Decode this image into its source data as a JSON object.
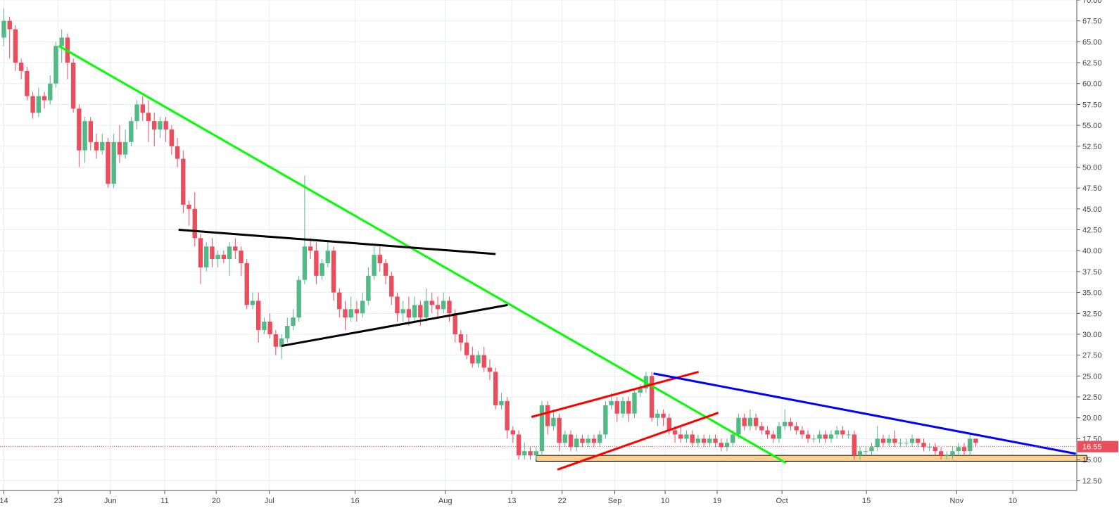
{
  "chart_data": {
    "type": "candlestick",
    "title": "",
    "ylim": [
      11.3,
      70.0
    ],
    "y_ticks": [
      12.5,
      15.0,
      17.5,
      20.0,
      22.5,
      25.0,
      27.5,
      30.0,
      32.5,
      35.0,
      37.5,
      40.0,
      42.5,
      45.0,
      47.5,
      50.0,
      52.5,
      55.0,
      57.5,
      60.0,
      62.5,
      65.0,
      67.5,
      70.0
    ],
    "y_tick_labels": [
      "12.50",
      "15.00",
      "17.50",
      "20.00",
      "22.50",
      "25.00",
      "27.50",
      "30.00",
      "32.50",
      "35.00",
      "37.50",
      "40.00",
      "42.50",
      "45.00",
      "47.50",
      "50.00",
      "52.50",
      "55.00",
      "57.50",
      "60.00",
      "62.50",
      "65.00",
      "67.50",
      "70.00"
    ],
    "x_ticks": [
      {
        "label": "14",
        "i": 0
      },
      {
        "label": "23",
        "i": 9.4
      },
      {
        "label": "Jun",
        "i": 18.4
      },
      {
        "label": "11",
        "i": 27.8
      },
      {
        "label": "20",
        "i": 36.7
      },
      {
        "label": "Jul",
        "i": 45.9
      },
      {
        "label": "16",
        "i": 60.7
      },
      {
        "label": "Aug",
        "i": 76.3
      },
      {
        "label": "13",
        "i": 87.8
      },
      {
        "label": "22",
        "i": 96.5
      },
      {
        "label": "Sep",
        "i": 105.6
      },
      {
        "label": "10",
        "i": 114.3
      },
      {
        "label": "19",
        "i": 123.3
      },
      {
        "label": "Oct",
        "i": 134.5
      },
      {
        "label": "15",
        "i": 149.1
      },
      {
        "label": "Nov",
        "i": 164.7
      },
      {
        "label": "10",
        "i": 174.4
      }
    ],
    "last_price": 16.55,
    "last_price_label": "16.55",
    "colors": {
      "up": "#53b987",
      "down": "#eb4d5c",
      "grid": "#e6eef2",
      "price_line": "#eb4d5c"
    },
    "candles": [
      [
        65.5,
        67.5,
        69.0,
        64.5
      ],
      [
        67.5,
        66.5,
        68.0,
        63.0
      ],
      [
        66.5,
        62.5,
        67.0,
        61.5
      ],
      [
        62.5,
        61.5,
        63.0,
        60.5
      ],
      [
        61.5,
        58.5,
        62.0,
        58.0
      ],
      [
        58.5,
        56.5,
        59.0,
        55.8
      ],
      [
        56.5,
        58.5,
        59.5,
        56.0
      ],
      [
        58.5,
        58.0,
        59.0,
        57.0
      ],
      [
        58.0,
        60.0,
        61.0,
        57.5
      ],
      [
        60.0,
        64.5,
        65.0,
        59.5
      ],
      [
        64.5,
        65.5,
        66.5,
        62.5
      ],
      [
        65.5,
        62.5,
        66.0,
        60.5
      ],
      [
        62.5,
        57.0,
        63.0,
        56.5
      ],
      [
        57.0,
        52.0,
        57.5,
        50.0
      ],
      [
        52.0,
        55.5,
        56.0,
        50.5
      ],
      [
        55.5,
        53.0,
        56.0,
        52.0
      ],
      [
        53.0,
        52.0,
        54.0,
        51.0
      ],
      [
        52.0,
        53.0,
        54.0,
        51.5
      ],
      [
        53.0,
        48.0,
        53.5,
        47.5
      ],
      [
        48.0,
        53.0,
        54.0,
        47.5
      ],
      [
        53.0,
        51.5,
        55.0,
        50.5
      ],
      [
        51.5,
        53.0,
        54.5,
        51.0
      ],
      [
        53.0,
        55.5,
        56.0,
        52.5
      ],
      [
        55.5,
        57.5,
        58.0,
        54.5
      ],
      [
        57.5,
        56.5,
        58.5,
        55.5
      ],
      [
        56.5,
        55.5,
        58.0,
        53.0
      ],
      [
        55.5,
        54.5,
        56.5,
        52.5
      ],
      [
        54.5,
        55.5,
        56.0,
        53.5
      ],
      [
        55.5,
        54.5,
        56.0,
        53.0
      ],
      [
        54.5,
        52.5,
        55.0,
        51.5
      ],
      [
        52.5,
        51.0,
        53.5,
        50.0
      ],
      [
        51.0,
        45.5,
        52.0,
        44.5
      ],
      [
        45.5,
        45.0,
        46.0,
        43.0
      ],
      [
        45.0,
        41.5,
        47.0,
        40.5
      ],
      [
        41.5,
        38.0,
        42.0,
        36.0
      ],
      [
        38.0,
        40.5,
        41.0,
        37.5
      ],
      [
        40.5,
        39.0,
        41.5,
        38.0
      ],
      [
        39.0,
        39.5,
        40.0,
        38.0
      ],
      [
        39.5,
        39.0,
        40.0,
        38.5
      ],
      [
        39.0,
        40.5,
        41.0,
        37.0
      ],
      [
        40.5,
        40.0,
        41.5,
        39.0
      ],
      [
        40.0,
        38.5,
        40.5,
        37.0
      ],
      [
        38.5,
        33.5,
        39.0,
        33.0
      ],
      [
        33.5,
        34.0,
        35.0,
        33.0
      ],
      [
        34.0,
        30.5,
        35.0,
        29.0
      ],
      [
        30.5,
        31.5,
        32.0,
        30.0
      ],
      [
        31.5,
        30.0,
        32.5,
        29.5
      ],
      [
        30.0,
        28.5,
        30.5,
        27.5
      ],
      [
        28.5,
        29.5,
        30.0,
        27.0
      ],
      [
        29.5,
        31.0,
        32.0,
        29.0
      ],
      [
        31.0,
        32.0,
        33.0,
        30.5
      ],
      [
        32.0,
        36.5,
        37.0,
        31.5
      ],
      [
        36.5,
        40.5,
        49.0,
        36.0
      ],
      [
        40.5,
        40.0,
        41.5,
        39.0
      ],
      [
        40.0,
        37.0,
        41.0,
        36.0
      ],
      [
        37.0,
        38.5,
        39.0,
        36.5
      ],
      [
        38.5,
        40.0,
        41.0,
        38.0
      ],
      [
        40.0,
        35.0,
        40.5,
        34.0
      ],
      [
        35.0,
        33.0,
        35.5,
        32.0
      ],
      [
        33.0,
        32.0,
        34.0,
        30.5
      ],
      [
        32.0,
        33.0,
        34.5,
        31.5
      ],
      [
        33.0,
        32.5,
        34.0,
        31.5
      ],
      [
        32.5,
        34.0,
        35.0,
        32.0
      ],
      [
        34.0,
        37.0,
        38.0,
        33.5
      ],
      [
        37.0,
        39.5,
        40.5,
        36.5
      ],
      [
        39.5,
        38.5,
        40.5,
        37.5
      ],
      [
        38.5,
        37.0,
        39.0,
        36.0
      ],
      [
        37.0,
        34.5,
        37.5,
        33.5
      ],
      [
        34.5,
        32.5,
        35.0,
        31.5
      ],
      [
        32.5,
        33.0,
        34.0,
        31.5
      ],
      [
        33.0,
        32.0,
        34.5,
        31.0
      ],
      [
        32.0,
        33.5,
        34.5,
        31.5
      ],
      [
        33.5,
        32.0,
        34.0,
        31.0
      ],
      [
        32.0,
        34.0,
        35.5,
        31.5
      ],
      [
        34.0,
        33.5,
        35.0,
        32.5
      ],
      [
        33.5,
        33.0,
        34.5,
        32.0
      ],
      [
        33.0,
        34.0,
        35.0,
        32.5
      ],
      [
        34.0,
        32.5,
        34.5,
        31.5
      ],
      [
        32.5,
        30.0,
        33.0,
        29.0
      ],
      [
        30.0,
        29.0,
        30.5,
        28.0
      ],
      [
        29.0,
        27.5,
        30.0,
        27.0
      ],
      [
        27.5,
        26.5,
        28.5,
        26.0
      ],
      [
        26.5,
        27.5,
        28.0,
        26.0
      ],
      [
        27.5,
        26.0,
        28.5,
        25.5
      ],
      [
        26.0,
        25.5,
        27.0,
        24.5
      ],
      [
        25.5,
        21.5,
        26.0,
        21.0
      ],
      [
        21.5,
        22.0,
        23.0,
        21.0
      ],
      [
        22.0,
        18.5,
        22.5,
        17.5
      ],
      [
        18.5,
        18.0,
        19.0,
        17.0
      ],
      [
        18.0,
        15.5,
        18.5,
        15.0
      ],
      [
        15.5,
        16.0,
        17.0,
        15.0
      ],
      [
        16.0,
        15.5,
        16.5,
        15.0
      ],
      [
        15.5,
        16.0,
        16.5,
        15.0
      ],
      [
        16.0,
        21.5,
        22.0,
        15.5
      ],
      [
        21.5,
        19.0,
        22.0,
        18.0
      ],
      [
        19.0,
        20.0,
        21.0,
        18.5
      ],
      [
        20.0,
        17.0,
        20.5,
        16.0
      ],
      [
        17.0,
        18.0,
        18.5,
        16.5
      ],
      [
        18.0,
        16.5,
        18.5,
        16.0
      ],
      [
        16.5,
        17.5,
        18.0,
        16.0
      ],
      [
        17.5,
        17.0,
        18.0,
        16.5
      ],
      [
        17.0,
        17.5,
        18.0,
        16.5
      ],
      [
        17.5,
        17.0,
        18.0,
        16.5
      ],
      [
        17.0,
        18.0,
        18.5,
        16.5
      ],
      [
        18.0,
        21.5,
        22.0,
        17.5
      ],
      [
        21.5,
        22.0,
        23.0,
        21.0
      ],
      [
        22.0,
        20.5,
        22.5,
        19.5
      ],
      [
        20.5,
        22.0,
        22.5,
        20.0
      ],
      [
        22.0,
        20.5,
        22.5,
        19.5
      ],
      [
        20.5,
        23.0,
        23.5,
        20.0
      ],
      [
        23.0,
        23.5,
        24.0,
        22.5
      ],
      [
        23.5,
        25.0,
        25.5,
        23.0
      ],
      [
        25.0,
        20.0,
        25.5,
        19.5
      ],
      [
        20.0,
        20.5,
        21.0,
        19.0
      ],
      [
        20.5,
        20.0,
        21.0,
        19.0
      ],
      [
        20.0,
        18.5,
        20.5,
        18.0
      ],
      [
        18.5,
        18.0,
        19.0,
        17.0
      ],
      [
        18.0,
        17.5,
        19.0,
        17.0
      ],
      [
        17.5,
        18.0,
        18.5,
        17.0
      ],
      [
        18.0,
        17.0,
        18.5,
        16.5
      ],
      [
        17.0,
        17.5,
        18.0,
        16.5
      ],
      [
        17.5,
        17.0,
        18.0,
        16.5
      ],
      [
        17.0,
        17.5,
        18.0,
        16.5
      ],
      [
        17.5,
        17.0,
        18.0,
        16.5
      ],
      [
        17.0,
        16.5,
        17.5,
        16.0
      ],
      [
        16.5,
        17.0,
        17.5,
        16.0
      ],
      [
        17.0,
        18.0,
        18.5,
        16.5
      ],
      [
        18.0,
        20.0,
        20.5,
        17.5
      ],
      [
        20.0,
        19.0,
        20.5,
        18.5
      ],
      [
        19.0,
        20.0,
        21.0,
        18.5
      ],
      [
        20.0,
        19.0,
        20.5,
        18.5
      ],
      [
        19.0,
        18.5,
        19.5,
        18.0
      ],
      [
        18.5,
        18.0,
        19.0,
        17.5
      ],
      [
        18.0,
        17.5,
        18.5,
        17.0
      ],
      [
        17.5,
        19.0,
        19.5,
        17.0
      ],
      [
        19.0,
        19.5,
        21.0,
        18.5
      ],
      [
        19.5,
        19.0,
        20.0,
        18.5
      ],
      [
        19.0,
        18.5,
        19.5,
        18.0
      ],
      [
        18.5,
        18.0,
        19.0,
        17.5
      ],
      [
        18.0,
        17.5,
        18.5,
        17.0
      ],
      [
        17.5,
        17.5,
        18.0,
        17.0
      ],
      [
        17.5,
        18.0,
        18.5,
        17.0
      ],
      [
        18.0,
        17.5,
        18.5,
        17.0
      ],
      [
        17.5,
        18.0,
        18.5,
        17.0
      ],
      [
        18.0,
        18.5,
        19.0,
        17.5
      ],
      [
        18.5,
        18.0,
        19.0,
        17.5
      ],
      [
        18.0,
        18.0,
        18.5,
        17.5
      ],
      [
        18.0,
        15.5,
        18.5,
        15.0
      ],
      [
        15.5,
        16.0,
        16.5,
        15.0
      ],
      [
        16.0,
        16.0,
        16.5,
        15.5
      ],
      [
        16.0,
        16.5,
        17.0,
        15.5
      ],
      [
        16.5,
        17.5,
        19.0,
        16.0
      ],
      [
        17.5,
        17.0,
        18.0,
        16.5
      ],
      [
        17.0,
        17.5,
        18.0,
        16.5
      ],
      [
        17.5,
        17.0,
        18.5,
        16.5
      ],
      [
        17.0,
        17.0,
        17.5,
        16.5
      ],
      [
        17.0,
        17.0,
        17.5,
        16.5
      ],
      [
        17.0,
        17.5,
        18.0,
        16.5
      ],
      [
        17.5,
        17.0,
        17.5,
        16.5
      ],
      [
        17.0,
        16.5,
        17.5,
        16.0
      ],
      [
        16.5,
        16.5,
        17.0,
        16.0
      ],
      [
        16.5,
        16.0,
        17.0,
        15.5
      ],
      [
        16.0,
        15.5,
        16.5,
        15.0
      ],
      [
        15.5,
        15.5,
        16.0,
        15.0
      ],
      [
        15.5,
        16.0,
        16.5,
        15.0
      ],
      [
        16.0,
        16.5,
        17.0,
        15.5
      ],
      [
        16.5,
        16.0,
        17.0,
        15.5
      ],
      [
        16.0,
        17.5,
        18.0,
        15.5
      ],
      [
        17.5,
        17.0,
        17.5,
        16.5
      ]
    ],
    "trendlines": [
      {
        "color": "#00ff00",
        "points": [
          [
            9.5,
            64.5
          ],
          [
            135.2,
            14.6
          ]
        ]
      },
      {
        "color": "#000000",
        "points": [
          [
            30.2,
            42.5
          ],
          [
            85.0,
            39.6
          ]
        ]
      },
      {
        "color": "#000000",
        "points": [
          [
            48.0,
            28.6
          ],
          [
            87.1,
            33.5
          ]
        ]
      },
      {
        "color": "#ff0000",
        "points": [
          [
            91.2,
            20.1
          ],
          [
            120.1,
            25.5
          ]
        ]
      },
      {
        "color": "#ff0000",
        "points": [
          [
            95.7,
            13.8
          ],
          [
            123.5,
            20.6
          ]
        ]
      },
      {
        "color": "#0000ff",
        "points": [
          [
            112.3,
            25.3
          ],
          [
            185.3,
            15.7
          ]
        ]
      }
    ],
    "support_zone": {
      "color": "#ffd08a",
      "border": "#000000",
      "x": [
        92.0,
        187.2
      ],
      "y": [
        14.8,
        15.5
      ]
    }
  }
}
